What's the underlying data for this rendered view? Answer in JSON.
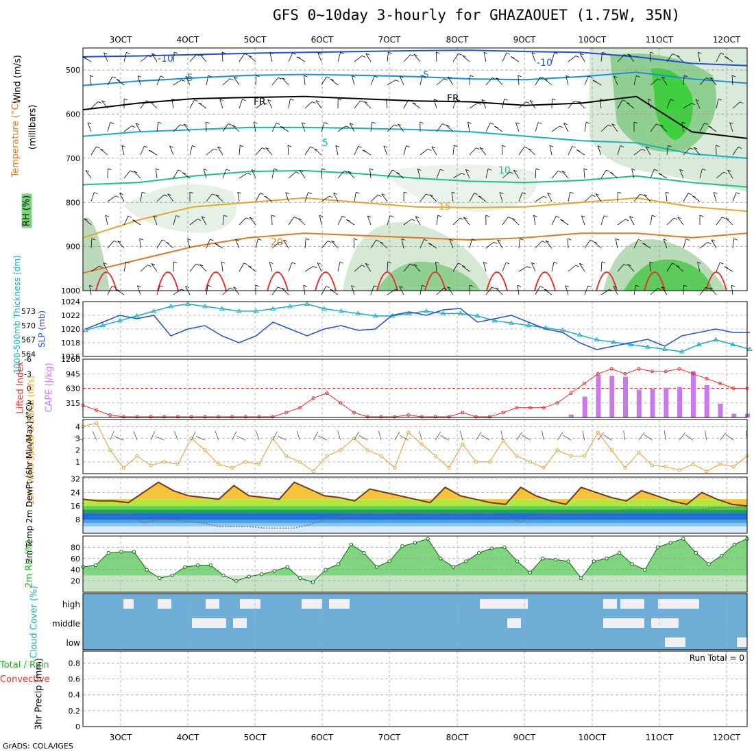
{
  "title": "GFS 0~10day 3-hourly for GHAZAOUET (1.75W, 35N)",
  "footer": "GrADS: COLA/IGES",
  "colors": {
    "wind_blue": "#1f4fd6",
    "cyan": "#19aebd",
    "orange": "#e69a2a",
    "red": "#e03030",
    "green": "#18b818",
    "purple": "#c87ae8",
    "cloud_bg": "#6eaed6"
  },
  "chart_data": {
    "type": "meteogram",
    "x_ticks": [
      "3OCT",
      "4OCT",
      "5OCT",
      "6OCT",
      "7OCT",
      "8OCT",
      "9OCT",
      "10OCT",
      "11OCT",
      "12OCT"
    ],
    "panels": {
      "upper_air": {
        "ylabel": "(millibars)",
        "yticks": [
          500,
          600,
          700,
          800,
          900,
          1000
        ],
        "legend": {
          "wind": "Wind (m/s)",
          "temperature": "Temperature (°C)",
          "rh": "RH (%)"
        },
        "isotherm_labels": [
          "-10",
          "-5",
          "FR",
          "5",
          "10",
          "15",
          "20",
          "-10",
          "-5",
          "FR"
        ],
        "isotherms": [
          {
            "label": "-10",
            "color": "#1f4fd6",
            "values": [
              470,
              468,
              465,
              462,
              460,
              458,
              456,
              455,
              458,
              460,
              470,
              485,
              490
            ]
          },
          {
            "label": "-5",
            "color": "#1a8fd6",
            "values": [
              535,
              525,
              518,
              512,
              510,
              512,
              515,
              520,
              522,
              515,
              505,
              520,
              530
            ]
          },
          {
            "label": "FR",
            "color": "#000000",
            "values": [
              590,
              575,
              565,
              562,
              560,
              565,
              570,
              572,
              580,
              575,
              560,
              640,
              655
            ]
          },
          {
            "label": "5",
            "color": "#19aebd",
            "values": [
              650,
              640,
              635,
              630,
              630,
              632,
              635,
              640,
              650,
              660,
              665,
              690,
              700
            ]
          },
          {
            "label": "10",
            "color": "#1fbf8a",
            "values": [
              760,
              755,
              740,
              730,
              728,
              735,
              745,
              752,
              755,
              750,
              740,
              755,
              765
            ]
          },
          {
            "label": "15",
            "color": "#e6a52a",
            "values": [
              880,
              840,
              810,
              800,
              790,
              800,
              810,
              812,
              810,
              800,
              790,
              810,
              820
            ]
          },
          {
            "label": "20",
            "color": "#e07820",
            "values": [
              960,
              930,
              900,
              880,
              870,
              875,
              880,
              885,
              880,
              870,
              870,
              880,
              870
            ]
          }
        ]
      },
      "pressure": {
        "ylabel": "1000-500mb Thickness (dm)",
        "ylabel2": "SLP (mb)",
        "thickness_ticks": [
          "564",
          "567",
          "570",
          "573"
        ],
        "slp_ticks": [
          "1016",
          "1018",
          "1020",
          "1022",
          "1024"
        ],
        "slp": [
          1020,
          1021,
          1022,
          1021.5,
          1022,
          1019,
          1020,
          1020.5,
          1019,
          1018,
          1019,
          1021,
          1020,
          1019,
          1020,
          1020.5,
          1019.8,
          1020,
          1022,
          1022.5,
          1022,
          1022.8,
          1023,
          1021,
          1021.5,
          1022,
          1021,
          1020,
          1019.5,
          1018,
          1017,
          1017.5,
          1018,
          1018.5,
          1017.5,
          1019,
          1019.5,
          1020,
          1019.5,
          1019.5
        ],
        "thickness": [
          569,
          570,
          571,
          572,
          573,
          574,
          574.5,
          574,
          573.5,
          573,
          573,
          573.5,
          574,
          574.5,
          573.5,
          573,
          572.5,
          572,
          572,
          572.5,
          573,
          572.5,
          572.5,
          572,
          571,
          570.5,
          570,
          569.5,
          569,
          568,
          567,
          566.5,
          566,
          565.5,
          565,
          564.5,
          566,
          567,
          566,
          565
        ]
      },
      "instability": {
        "ylabel": "Lifted Index",
        "ylabel2": "CAPE (J/kg)",
        "li_ticks": [
          "-6",
          "-3",
          "0",
          "3",
          "6"
        ],
        "cape_ticks": [
          "315",
          "630",
          "945",
          "1260"
        ],
        "lifted_index": [
          3.5,
          4.5,
          5.5,
          6,
          6,
          6,
          6,
          6,
          6,
          6,
          6,
          6,
          6,
          6,
          6,
          5,
          4,
          2,
          1,
          3,
          5,
          6,
          6,
          6,
          5.5,
          6,
          6,
          6,
          5,
          6,
          6,
          5,
          4,
          4,
          4,
          3,
          1,
          -1,
          -3,
          -4,
          -3,
          -4,
          -3.5,
          -3.5,
          -4,
          -3,
          -2,
          -1,
          0,
          0
        ],
        "cape": [
          0,
          0,
          0,
          0,
          0,
          0,
          0,
          0,
          0,
          0,
          0,
          0,
          0,
          0,
          0,
          0,
          0,
          0,
          0,
          0,
          0,
          0,
          0,
          0,
          0,
          0,
          0,
          0,
          0,
          0,
          0,
          0,
          0,
          0,
          0,
          0,
          60,
          450,
          920,
          900,
          880,
          600,
          620,
          640,
          660,
          1000,
          700,
          300,
          80,
          80
        ]
      },
      "wind10m": {
        "ylabel": "10m Wind Speed & Barbs (m/s)",
        "yticks": [
          "1",
          "2",
          "3",
          "4"
        ],
        "speed": [
          4,
          4.3,
          2,
          0.5,
          1.5,
          0.7,
          1,
          0.8,
          3,
          2,
          0.8,
          0.5,
          1,
          0.8,
          3,
          1.5,
          1,
          0.2,
          1.5,
          2,
          3,
          2,
          1.5,
          0.5,
          3.5,
          2.5,
          1.5,
          0.5,
          2.5,
          1,
          1,
          2.8,
          1.5,
          1,
          0.5,
          2,
          1.5,
          1.5,
          3.5,
          2,
          0.5,
          1.8,
          0.7,
          0.6,
          0.3,
          0.8,
          0.2,
          0.8,
          0.6,
          1.5
        ]
      },
      "temperature": {
        "ylabel": "2m Temp 2m DewPt (6hr Min/Max) (°C)",
        "yticks": [
          "8",
          "16",
          "24",
          "32"
        ],
        "temp": [
          20,
          19,
          19,
          18,
          24,
          30,
          25,
          22,
          21,
          20,
          28,
          22,
          21,
          20,
          30,
          26,
          22,
          21,
          19,
          26,
          24,
          22,
          20,
          18,
          27,
          22,
          20,
          18,
          17,
          27,
          22,
          19,
          17,
          27,
          24,
          21,
          19,
          25,
          22,
          19,
          17,
          24,
          20,
          17,
          16
        ],
        "dewpt": [
          13,
          12,
          12,
          11,
          6,
          8,
          8,
          7,
          6,
          4,
          4,
          4,
          3,
          3,
          3,
          5,
          8,
          9,
          11,
          12,
          11,
          12,
          12,
          11,
          12,
          11,
          12,
          11,
          9,
          7,
          10,
          11,
          12,
          12,
          13,
          13,
          14,
          14,
          14,
          14,
          14,
          14,
          15,
          15,
          15
        ]
      },
      "rh": {
        "ylabel": "2m RH (%)",
        "yticks": [
          "20",
          "40",
          "60",
          "80"
        ],
        "rh": [
          45,
          48,
          70,
          72,
          72,
          40,
          25,
          30,
          45,
          48,
          48,
          30,
          20,
          28,
          32,
          38,
          45,
          25,
          18,
          40,
          50,
          85,
          70,
          45,
          55,
          82,
          88,
          95,
          60,
          45,
          55,
          70,
          78,
          80,
          55,
          35,
          60,
          58,
          55,
          25,
          55,
          60,
          70,
          50,
          40,
          80,
          88,
          95,
          70,
          50,
          65,
          85,
          95
        ]
      },
      "cloud": {
        "ylabel": "Cloud Cover (%)",
        "layers": [
          "high",
          "middle",
          "low"
        ]
      },
      "precip": {
        "ylabel": "3hr Precip (mm)",
        "ylabel_left1": "Total / Rain",
        "ylabel_left2": "Convective",
        "yticks": [
          "0",
          "0.2",
          "0.4",
          "0.6",
          "0.8"
        ],
        "run_total": "Run Total = 0",
        "values": [
          0,
          0,
          0,
          0,
          0,
          0,
          0,
          0,
          0,
          0
        ]
      }
    }
  }
}
